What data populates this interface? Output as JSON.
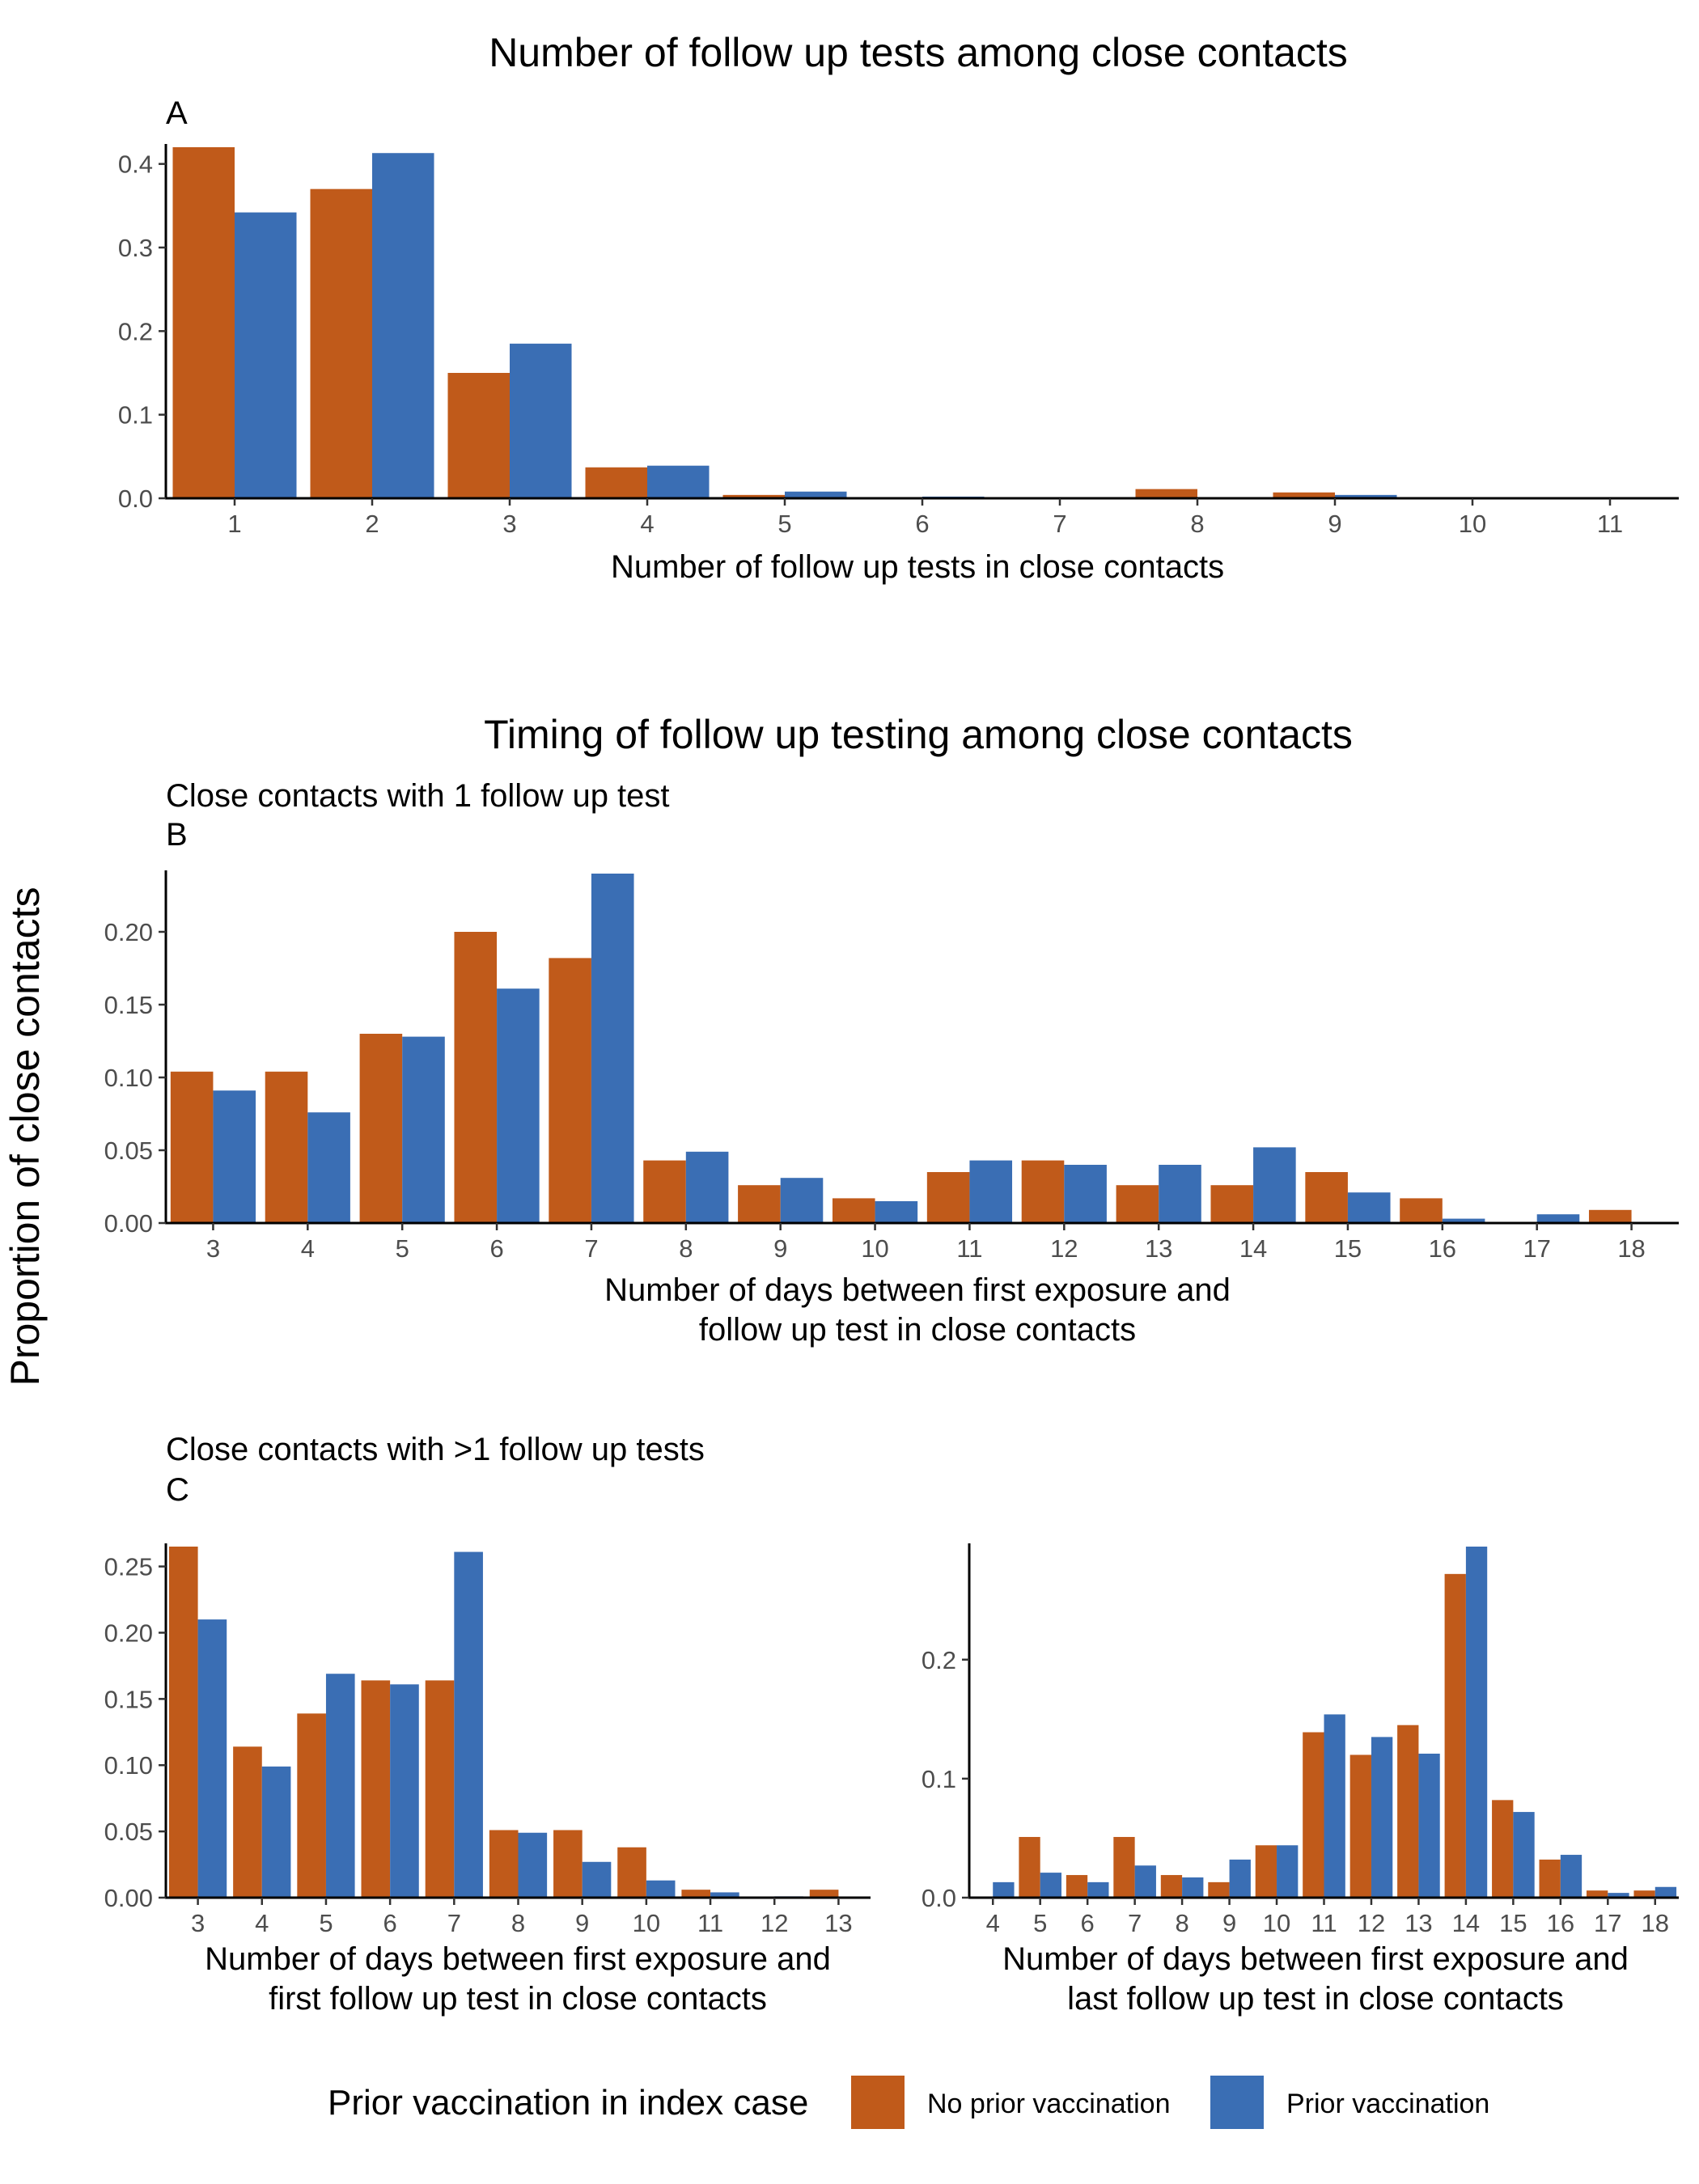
{
  "figure": {
    "ylabel": "Proportion of close contacts",
    "title_top": "Number of follow up tests among close contacts",
    "title_mid": "Timing of follow up testing among close contacts"
  },
  "legend": {
    "title": "Prior vaccination in index case",
    "items": [
      {
        "label": "No prior vaccination",
        "color": "#C05A1A"
      },
      {
        "label": "Prior vaccination",
        "color": "#3A6EB4"
      }
    ]
  },
  "chart_data": [
    {
      "type": "bar",
      "tag": "A",
      "subtitle": "",
      "xlabel": "Number of follow up tests in close contacts",
      "categories": [
        "1",
        "2",
        "3",
        "4",
        "5",
        "6",
        "7",
        "8",
        "9",
        "10",
        "11"
      ],
      "ylim": [
        0,
        0.42
      ],
      "yticks": [
        0.0,
        0.1,
        0.2,
        0.3,
        0.4
      ],
      "ytick_labels": [
        "0.0",
        "0.1",
        "0.2",
        "0.3",
        "0.4"
      ],
      "series": [
        {
          "name": "No prior vaccination",
          "values": [
            0.42,
            0.37,
            0.15,
            0.037,
            0.004,
            0.0,
            0.0,
            0.011,
            0.007,
            0.0,
            0.0
          ]
        },
        {
          "name": "Prior vaccination",
          "values": [
            0.342,
            0.413,
            0.185,
            0.039,
            0.008,
            0.002,
            0.0,
            0.0,
            0.004,
            0.0,
            0.0
          ]
        }
      ]
    },
    {
      "type": "bar",
      "tag": "B",
      "subtitle": "Close contacts with 1 follow up test",
      "xlabel": [
        "Number of days between first exposure and",
        "follow up test in close contacts"
      ],
      "categories": [
        "3",
        "4",
        "5",
        "6",
        "7",
        "8",
        "9",
        "10",
        "11",
        "12",
        "13",
        "14",
        "15",
        "16",
        "17",
        "18"
      ],
      "ylim": [
        0,
        0.24
      ],
      "yticks": [
        0.0,
        0.05,
        0.1,
        0.15,
        0.2
      ],
      "ytick_labels": [
        "0.00",
        "0.05",
        "0.10",
        "0.15",
        "0.20"
      ],
      "series": [
        {
          "name": "No prior vaccination",
          "values": [
            0.104,
            0.104,
            0.13,
            0.2,
            0.182,
            0.043,
            0.026,
            0.017,
            0.035,
            0.043,
            0.026,
            0.026,
            0.035,
            0.017,
            0.0,
            0.009
          ]
        },
        {
          "name": "Prior vaccination",
          "values": [
            0.091,
            0.076,
            0.128,
            0.161,
            0.24,
            0.049,
            0.031,
            0.015,
            0.043,
            0.04,
            0.04,
            0.052,
            0.021,
            0.003,
            0.006,
            0.0
          ]
        }
      ]
    },
    {
      "type": "bar",
      "tag": "C",
      "subtitle": "Close contacts with >1 follow up tests",
      "xlabel": [
        "Number of days between first exposure and",
        "first follow up test in close contacts"
      ],
      "categories": [
        "3",
        "4",
        "5",
        "6",
        "7",
        "8",
        "9",
        "10",
        "11",
        "12",
        "13"
      ],
      "ylim": [
        0,
        0.265
      ],
      "yticks": [
        0.0,
        0.05,
        0.1,
        0.15,
        0.2,
        0.25
      ],
      "ytick_labels": [
        "0.00",
        "0.05",
        "0.10",
        "0.15",
        "0.20",
        "0.25"
      ],
      "series": [
        {
          "name": "No prior vaccination",
          "values": [
            0.265,
            0.114,
            0.139,
            0.164,
            0.164,
            0.051,
            0.051,
            0.038,
            0.006,
            0.0,
            0.006
          ]
        },
        {
          "name": "Prior vaccination",
          "values": [
            0.21,
            0.099,
            0.169,
            0.161,
            0.261,
            0.049,
            0.027,
            0.013,
            0.004,
            0.001,
            0.0
          ]
        }
      ]
    },
    {
      "type": "bar",
      "tag": "",
      "subtitle": "",
      "xlabel": [
        "Number of days between first exposure and",
        "last follow up test in close contacts"
      ],
      "categories": [
        "4",
        "5",
        "6",
        "7",
        "8",
        "9",
        "10",
        "11",
        "12",
        "13",
        "14",
        "15",
        "16",
        "17",
        "18"
      ],
      "ylim": [
        0,
        0.295
      ],
      "yticks": [
        0.0,
        0.1,
        0.2
      ],
      "ytick_labels": [
        "0.0",
        "0.1",
        "0.2"
      ],
      "series": [
        {
          "name": "No prior vaccination",
          "values": [
            0.0,
            0.051,
            0.019,
            0.051,
            0.019,
            0.013,
            0.044,
            0.139,
            0.12,
            0.145,
            0.272,
            0.082,
            0.032,
            0.006,
            0.006
          ]
        },
        {
          "name": "Prior vaccination",
          "values": [
            0.013,
            0.021,
            0.013,
            0.027,
            0.017,
            0.032,
            0.044,
            0.154,
            0.135,
            0.121,
            0.295,
            0.072,
            0.036,
            0.004,
            0.009
          ]
        }
      ]
    }
  ]
}
